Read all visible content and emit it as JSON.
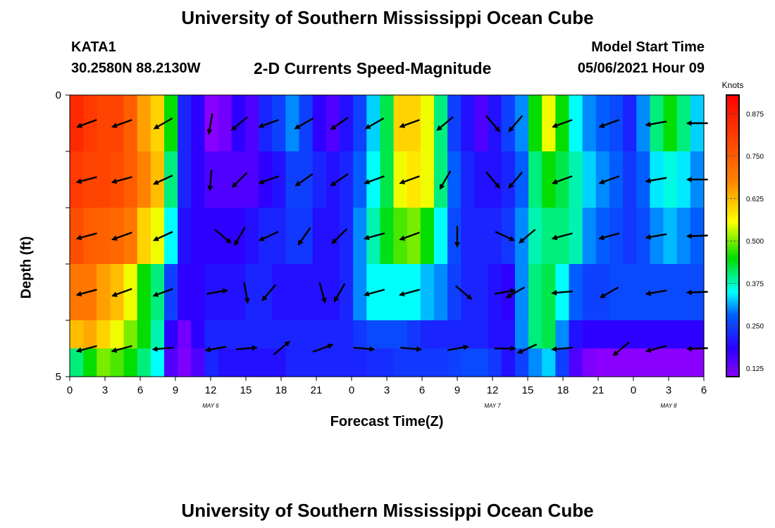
{
  "header": {
    "title_top": "University of Southern Mississippi Ocean Cube",
    "title_bottom": "University of Southern Mississippi Ocean Cube",
    "station_id": "KATA1",
    "station_coords": "30.2580N  88.2130W",
    "chart_title": "2-D Currents Speed-Magnitude",
    "model_start_label": "Model Start Time",
    "model_start_value": "05/06/2021 Hour 09"
  },
  "colors": {
    "background": "#ffffff",
    "arrow": "#000000",
    "colormap": [
      "#8a00ff",
      "#0000ff",
      "#00ffff",
      "#00ff00",
      "#ffff00",
      "#ff8000",
      "#ff0000"
    ]
  },
  "chart_data": {
    "type": "heatmap",
    "title": "2-D Currents Speed-Magnitude",
    "xlabel": "Forecast Time(Z)",
    "ylabel": "Depth (ft)",
    "x_tick_labels": [
      "0",
      "3",
      "6",
      "9",
      "12",
      "15",
      "18",
      "21",
      "0",
      "3",
      "6",
      "9",
      "12",
      "15",
      "18",
      "21",
      "0",
      "3",
      "6"
    ],
    "date_labels": [
      {
        "label": "MAY 6",
        "tick_index": 4
      },
      {
        "label": "MAY 7",
        "tick_index": 12
      },
      {
        "label": "MAY 8",
        "tick_index": 17
      }
    ],
    "y_tick_labels": [
      "0",
      "5"
    ],
    "ylim": [
      0,
      5
    ],
    "x_range_hours": [
      0,
      54
    ],
    "colorbar": {
      "label": "Knots",
      "min": 0.1,
      "max": 0.93,
      "ticks": [
        "0.125",
        "0.250",
        "0.375",
        "0.500",
        "0.625",
        "0.750",
        "0.875"
      ],
      "tick_values": [
        0.125,
        0.25,
        0.375,
        0.5,
        0.625,
        0.75,
        0.875
      ]
    },
    "depth_layers": [
      0.5,
      1.5,
      2.5,
      3.5,
      4.5,
      5.0
    ],
    "speed_rows": [
      [
        0.85,
        0.82,
        0.8,
        0.8,
        0.75,
        0.65,
        0.6,
        0.45,
        0.22,
        0.18,
        0.1,
        0.12,
        0.18,
        0.15,
        0.22,
        0.25,
        0.3,
        0.25,
        0.18,
        0.15,
        0.2,
        0.25,
        0.33,
        0.42,
        0.6,
        0.6,
        0.55,
        0.4,
        0.25,
        0.2,
        0.15,
        0.2,
        0.25,
        0.3,
        0.45,
        0.55,
        0.45,
        0.35,
        0.3,
        0.28,
        0.26,
        0.22,
        0.3,
        0.4,
        0.45,
        0.4,
        0.33
      ],
      [
        0.82,
        0.8,
        0.8,
        0.78,
        0.75,
        0.68,
        0.62,
        0.4,
        0.22,
        0.18,
        0.15,
        0.15,
        0.15,
        0.15,
        0.18,
        0.2,
        0.25,
        0.25,
        0.22,
        0.2,
        0.22,
        0.28,
        0.35,
        0.42,
        0.55,
        0.58,
        0.55,
        0.4,
        0.28,
        0.22,
        0.2,
        0.2,
        0.22,
        0.28,
        0.4,
        0.45,
        0.42,
        0.38,
        0.33,
        0.3,
        0.28,
        0.24,
        0.28,
        0.34,
        0.36,
        0.34,
        0.3
      ],
      [
        0.78,
        0.75,
        0.74,
        0.73,
        0.7,
        0.6,
        0.55,
        0.35,
        0.2,
        0.18,
        0.18,
        0.18,
        0.18,
        0.2,
        0.22,
        0.22,
        0.24,
        0.24,
        0.2,
        0.2,
        0.22,
        0.3,
        0.38,
        0.44,
        0.48,
        0.5,
        0.45,
        0.35,
        0.26,
        0.22,
        0.22,
        0.22,
        0.24,
        0.3,
        0.38,
        0.4,
        0.4,
        0.38,
        0.3,
        0.28,
        0.26,
        0.24,
        0.26,
        0.3,
        0.32,
        0.3,
        0.28
      ],
      [
        0.7,
        0.7,
        0.65,
        0.62,
        0.55,
        0.45,
        0.4,
        0.25,
        0.18,
        0.18,
        0.2,
        0.2,
        0.2,
        0.22,
        0.22,
        0.2,
        0.2,
        0.2,
        0.2,
        0.2,
        0.22,
        0.3,
        0.35,
        0.35,
        0.35,
        0.35,
        0.32,
        0.3,
        0.25,
        0.22,
        0.22,
        0.2,
        0.18,
        0.3,
        0.4,
        0.42,
        0.35,
        0.28,
        0.25,
        0.25,
        0.26,
        0.26,
        0.26,
        0.26,
        0.26,
        0.26,
        0.26
      ],
      [
        0.62,
        0.64,
        0.6,
        0.55,
        0.5,
        0.45,
        0.38,
        0.18,
        0.12,
        0.18,
        0.22,
        0.22,
        0.22,
        0.22,
        0.22,
        0.22,
        0.22,
        0.22,
        0.22,
        0.22,
        0.22,
        0.24,
        0.26,
        0.26,
        0.26,
        0.24,
        0.22,
        0.22,
        0.22,
        0.22,
        0.22,
        0.2,
        0.2,
        0.3,
        0.4,
        0.42,
        0.3,
        0.2,
        0.18,
        0.18,
        0.18,
        0.18,
        0.18,
        0.18,
        0.18,
        0.18,
        0.18
      ],
      [
        0.4,
        0.45,
        0.5,
        0.48,
        0.45,
        0.4,
        0.35,
        0.15,
        0.11,
        0.15,
        0.22,
        0.2,
        0.2,
        0.2,
        0.2,
        0.2,
        0.22,
        0.22,
        0.22,
        0.22,
        0.22,
        0.22,
        0.23,
        0.23,
        0.24,
        0.24,
        0.24,
        0.24,
        0.25,
        0.26,
        0.26,
        0.24,
        0.2,
        0.25,
        0.3,
        0.33,
        0.25,
        0.15,
        0.11,
        0.1,
        0.1,
        0.1,
        0.1,
        0.1,
        0.1,
        0.1,
        0.1
      ]
    ],
    "arrow_rows": [
      {
        "depth": 0.5,
        "arrows": [
          [
            1.5,
            -160
          ],
          [
            4.5,
            -160
          ],
          [
            8,
            -150
          ],
          [
            12,
            -100
          ],
          [
            14.5,
            -140
          ],
          [
            17,
            -160
          ],
          [
            20,
            -150
          ],
          [
            23,
            -145
          ],
          [
            26,
            -150
          ],
          [
            29,
            -160
          ],
          [
            32,
            -140
          ],
          [
            36,
            -50
          ],
          [
            38,
            -130
          ],
          [
            42,
            -160
          ],
          [
            46,
            -160
          ],
          [
            50,
            -170
          ],
          [
            53.5,
            -180
          ]
        ]
      },
      {
        "depth": 1.5,
        "arrows": [
          [
            1.5,
            -165
          ],
          [
            4.5,
            -165
          ],
          [
            8,
            -155
          ],
          [
            12,
            -95
          ],
          [
            14.5,
            -135
          ],
          [
            17,
            -160
          ],
          [
            20,
            -145
          ],
          [
            23,
            -145
          ],
          [
            26,
            -160
          ],
          [
            29,
            -160
          ],
          [
            32,
            -120
          ],
          [
            36,
            -50
          ],
          [
            38,
            -130
          ],
          [
            42,
            -160
          ],
          [
            46,
            -160
          ],
          [
            50,
            -170
          ],
          [
            53.5,
            -180
          ]
        ]
      },
      {
        "depth": 2.5,
        "arrows": [
          [
            1.5,
            -165
          ],
          [
            4.5,
            -160
          ],
          [
            8,
            -155
          ],
          [
            13,
            -40
          ],
          [
            14.5,
            -120
          ],
          [
            17,
            -155
          ],
          [
            20,
            -125
          ],
          [
            23,
            -135
          ],
          [
            26,
            -165
          ],
          [
            29,
            -160
          ],
          [
            33,
            -90
          ],
          [
            37,
            -25
          ],
          [
            39,
            -140
          ],
          [
            42,
            -165
          ],
          [
            46,
            -165
          ],
          [
            50,
            -170
          ],
          [
            53.5,
            -178
          ]
        ]
      },
      {
        "depth": 3.5,
        "arrows": [
          [
            1.5,
            -165
          ],
          [
            4.5,
            -160
          ],
          [
            8,
            -160
          ],
          [
            12.5,
            10
          ],
          [
            15,
            -80
          ],
          [
            17,
            -130
          ],
          [
            21.5,
            -75
          ],
          [
            23,
            -120
          ],
          [
            26,
            -165
          ],
          [
            29,
            -165
          ],
          [
            33.5,
            -40
          ],
          [
            37,
            10
          ],
          [
            38,
            -150
          ],
          [
            42,
            -175
          ],
          [
            46,
            -150
          ],
          [
            50,
            -170
          ],
          [
            53.5,
            -178
          ]
        ]
      },
      {
        "depth": 4.5,
        "arrows": [
          [
            1.5,
            -165
          ],
          [
            4.5,
            -165
          ],
          [
            8,
            -175
          ],
          [
            12.5,
            -170
          ],
          [
            15,
            5
          ],
          [
            18,
            40
          ],
          [
            21.5,
            20
          ],
          [
            25,
            -5
          ],
          [
            29,
            -5
          ],
          [
            33,
            10
          ],
          [
            37,
            0
          ],
          [
            39,
            -155
          ],
          [
            42,
            -175
          ],
          [
            47,
            -140
          ],
          [
            50,
            -165
          ],
          [
            53.5,
            -178
          ]
        ]
      }
    ]
  }
}
